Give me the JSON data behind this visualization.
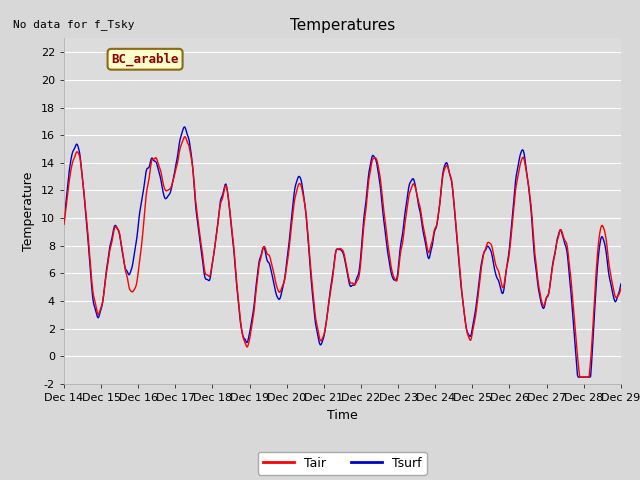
{
  "title": "Temperatures",
  "no_data_text": "No data for f_Tsky",
  "location_label": "BC_arable",
  "xlabel": "Time",
  "ylabel": "Temperature",
  "ylim": [
    -2,
    23
  ],
  "yticks": [
    -2,
    0,
    2,
    4,
    6,
    8,
    10,
    12,
    14,
    16,
    18,
    20,
    22
  ],
  "n_days": 15,
  "start_day": 14,
  "tair_color": "#ff0000",
  "tsurf_color": "#0000cc",
  "legend_tair": "Tair",
  "legend_tsurf": "Tsurf",
  "bg_color": "#d8d8d8",
  "plot_bg_color": "#dcdcdc",
  "title_fontsize": 11,
  "label_fontsize": 9,
  "tick_fontsize": 8,
  "line_width": 1.0
}
